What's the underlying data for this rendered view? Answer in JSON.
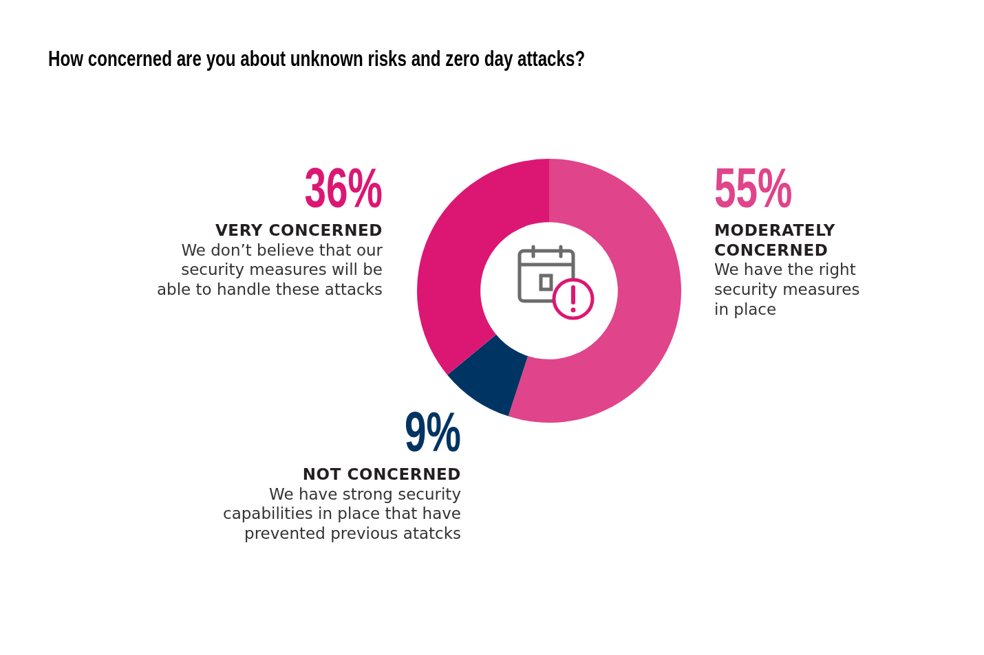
{
  "chart_data": {
    "type": "donut",
    "title": "How concerned are you about unknown risks and zero day attacks?",
    "categories": [
      "MODERATELY CONCERNED",
      "NOT CONCERNED",
      "VERY CONCERNED"
    ],
    "values": [
      55,
      9,
      36
    ],
    "colors": [
      "#e0448a",
      "#003462",
      "#dc1773"
    ],
    "value_labels": [
      "55%",
      "9%",
      "36%"
    ],
    "annotations": [
      "We have the right security measures in place",
      "We have strong security capabilities in place that have prevented previous atatcks",
      "We don’t believe that our security measures will be able to handle these attacks"
    ]
  }
}
